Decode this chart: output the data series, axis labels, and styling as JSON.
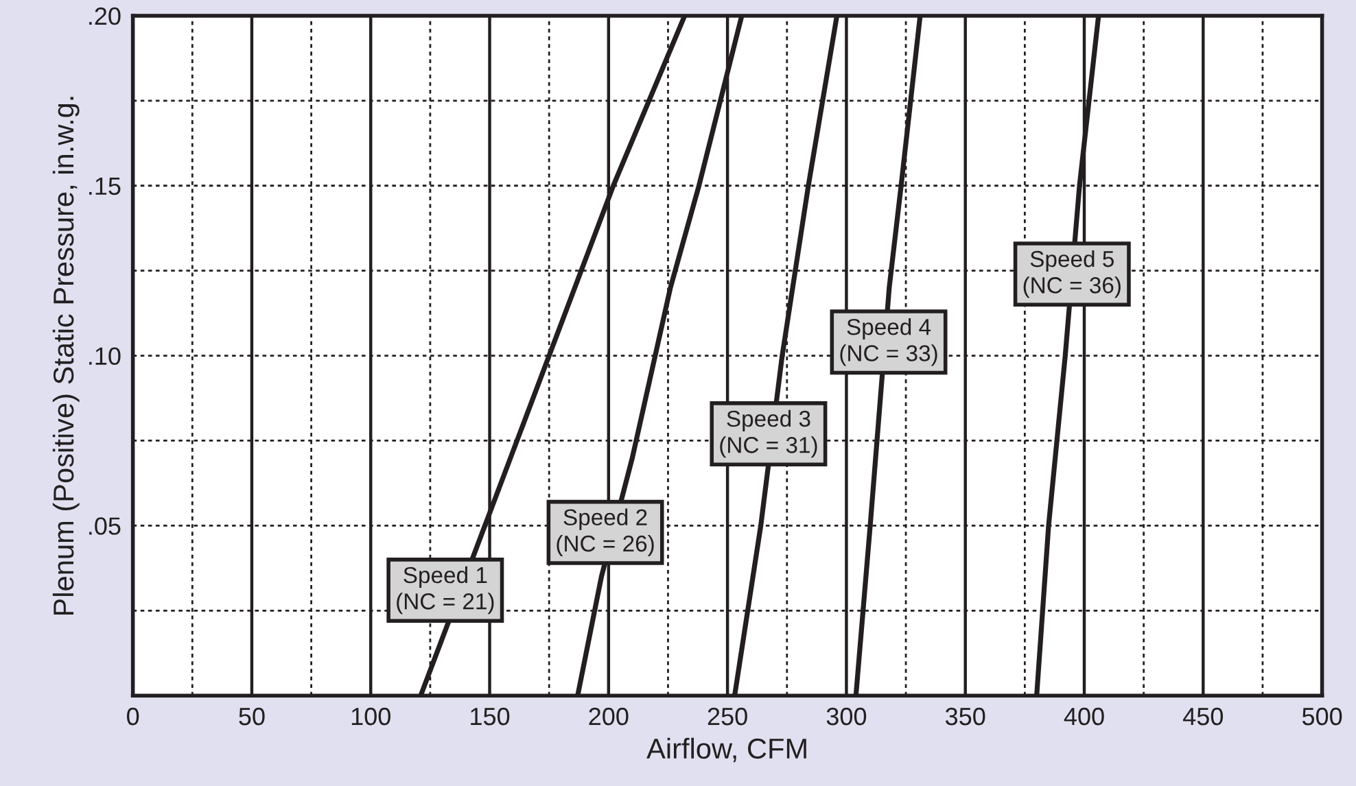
{
  "chart_data": {
    "type": "line",
    "xlabel": "Airflow, CFM",
    "ylabel": "Plenum (Positive) Static Pressure, in.w.g.",
    "series": [
      {
        "color": "#231f20",
        "x": [
          121,
          148,
          175,
          202,
          232
        ],
        "values": [
          0,
          0.05,
          0.1,
          0.15,
          0.2
        ]
      },
      {
        "color": "#231f20",
        "x": [
          187,
          197,
          210,
          226,
          238,
          256
        ],
        "values": [
          0,
          0.035,
          0.07,
          0.12,
          0.15,
          0.2
        ]
      },
      {
        "color": "#231f20",
        "x": [
          253,
          264,
          273,
          284,
          296
        ],
        "values": [
          0,
          0.05,
          0.1,
          0.15,
          0.2
        ]
      },
      {
        "color": "#231f20",
        "x": [
          304,
          310,
          314,
          318,
          323,
          331
        ],
        "values": [
          0,
          0.05,
          0.085,
          0.12,
          0.15,
          0.2
        ]
      },
      {
        "color": "#231f20",
        "x": [
          380,
          385,
          392,
          398,
          406
        ],
        "values": [
          0,
          0.05,
          0.1,
          0.15,
          0.2
        ]
      }
    ],
    "annotations": [
      "Speed 1\n(NC = 21)",
      "Speed 2\n(NC = 26)",
      "Speed 3\n(NC = 31)",
      "Speed 4\n(NC = 33)",
      "Speed 5\n(NC = 36)"
    ],
    "xlim": [
      0,
      500
    ],
    "ylim": [
      0,
      0.2
    ],
    "xticks": [
      0,
      {
        "value": 25,
        "label": null
      },
      50,
      {
        "value": 75,
        "label": null
      },
      100,
      {
        "value": 125,
        "label": null
      },
      150,
      {
        "value": 175,
        "label": null
      },
      200,
      {
        "value": 225,
        "label": null
      },
      250,
      {
        "value": 275,
        "label": null
      },
      300,
      {
        "value": 325,
        "label": null
      },
      350,
      {
        "value": 375,
        "label": null
      },
      400,
      {
        "value": 425,
        "label": null
      },
      450,
      {
        "value": 475,
        "label": null
      },
      500
    ],
    "yticks": [
      {
        "value": 0.025,
        "label": null
      },
      {
        "value": 0.05,
        "label": ".05"
      },
      {
        "value": 0.075,
        "label": null
      },
      {
        "value": 0.1,
        "label": ".10"
      },
      {
        "value": 0.125,
        "label": null
      },
      {
        "value": 0.15,
        "label": ".15"
      },
      {
        "value": 0.175,
        "label": null
      },
      {
        "value": 0.2,
        "label": ".20"
      }
    ],
    "grid": true,
    "line_style": "solid",
    "marker": "none"
  }
}
